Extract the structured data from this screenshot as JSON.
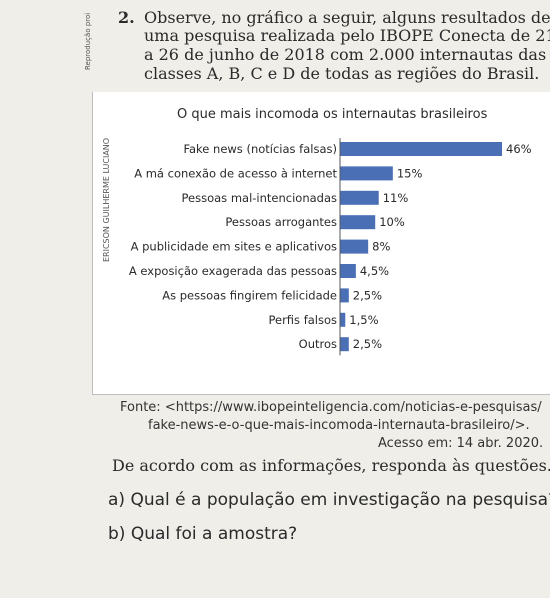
{
  "side_texts": {
    "reproduction": "Reprodução proi",
    "credit": "ERICSON GUILHERME LUCIANO"
  },
  "question": {
    "number": "2.",
    "lines": [
      "Observe, no gráfico a seguir, alguns resultados de",
      "uma pesquisa realizada pelo IBOPE Conecta de 21",
      "a 26 de junho de 2018 com 2.000 internautas das",
      "classes A, B, C e D de todas as regiões do Brasil."
    ]
  },
  "chart_data": {
    "type": "bar",
    "orientation": "horizontal",
    "title": "O que mais incomoda os internautas brasileiros",
    "categories": [
      "Fake news (notícias falsas)",
      "A má conexão de acesso à internet",
      "Pessoas mal-intencionadas",
      "Pessoas arrogantes",
      "A publicidade em sites e aplicativos",
      "A exposição exagerada das pessoas",
      "As pessoas fingirem felicidade",
      "Perfis falsos",
      "Outros"
    ],
    "values": [
      46,
      15,
      11,
      10,
      8,
      4.5,
      2.5,
      1.5,
      2.5
    ],
    "value_labels": [
      "46%",
      "15%",
      "11%",
      "10%",
      "8%",
      "4,5%",
      "2,5%",
      "1,5%",
      "2,5%"
    ],
    "xlim": [
      0,
      46
    ],
    "bar_color": "#4a6fb5",
    "grid": false,
    "legend": "none"
  },
  "source": {
    "line1": "Fonte: <https://www.ibopeinteligencia.com/noticias-e-pesquisas/",
    "line2": "fake-news-e-o-que-mais-incomoda-internauta-brasileiro/>.",
    "line3": "Acesso em: 14 abr. 2020."
  },
  "prompt": "De acordo com as informações, responda às questões.",
  "items": [
    "a) Qual é a população em investigação na pesquisa?",
    "b) Qual foi a amostra?"
  ]
}
